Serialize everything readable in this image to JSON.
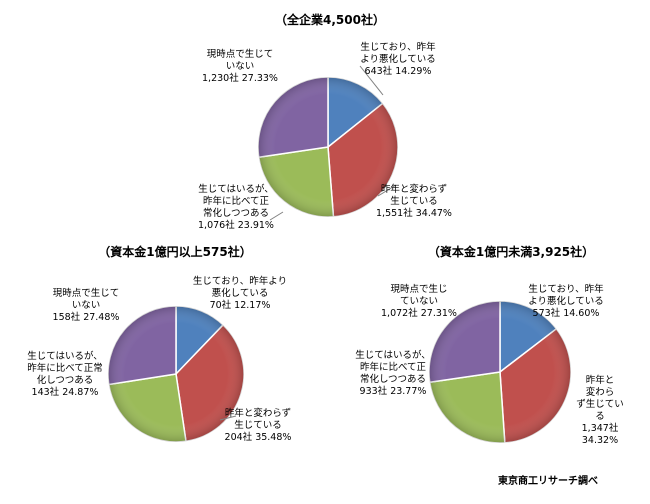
{
  "source": "東京商工リサーチ調べ",
  "chart_data": [
    {
      "type": "pie",
      "title": "（全企業4,500社）",
      "slices": [
        {
          "label_lines": [
            "生じており、昨年",
            "より悪化している",
            "643社 14.29%"
          ],
          "value": 643,
          "percent": 14.29,
          "color": "#4f81bd"
        },
        {
          "label_lines": [
            "昨年と変わらず",
            "生じている",
            "1,551社 34.47%"
          ],
          "value": 1551,
          "percent": 34.47,
          "color": "#c0504d"
        },
        {
          "label_lines": [
            "生じてはいるが、",
            "昨年に比べて正",
            "常化しつつある",
            "1,076社 23.91%"
          ],
          "value": 1076,
          "percent": 23.91,
          "color": "#9bbb59"
        },
        {
          "label_lines": [
            "現時点で生じて",
            "いない",
            "1,230社 27.33%"
          ],
          "value": 1230,
          "percent": 27.33,
          "color": "#8064a2"
        }
      ]
    },
    {
      "type": "pie",
      "title": "（資本金1億円以上575社）",
      "slices": [
        {
          "label_lines": [
            "生じており、昨年より",
            "悪化している",
            "70社 12.17%"
          ],
          "value": 70,
          "percent": 12.17,
          "color": "#4f81bd"
        },
        {
          "label_lines": [
            "昨年と変わらず",
            "生じている",
            "204社 35.48%"
          ],
          "value": 204,
          "percent": 35.48,
          "color": "#c0504d"
        },
        {
          "label_lines": [
            "生じてはいるが、",
            "昨年に比べて正常",
            "化しつつある",
            "143社 24.87%"
          ],
          "value": 143,
          "percent": 24.87,
          "color": "#9bbb59"
        },
        {
          "label_lines": [
            "現時点で生じて",
            "いない",
            "158社 27.48%"
          ],
          "value": 158,
          "percent": 27.48,
          "color": "#8064a2"
        }
      ]
    },
    {
      "type": "pie",
      "title": "（資本金1億円未満3,925社）",
      "slices": [
        {
          "label_lines": [
            "生じており、昨年",
            "より悪化している",
            "573社 14.60%"
          ],
          "value": 573,
          "percent": 14.6,
          "color": "#4f81bd"
        },
        {
          "label_lines": [
            "昨年と",
            "変わら",
            "ず生じてい",
            "る",
            "1,347社",
            "34.32%"
          ],
          "value": 1347,
          "percent": 34.32,
          "color": "#c0504d"
        },
        {
          "label_lines": [
            "生じてはいるが、",
            "昨年に比べて正",
            "常化しつつある",
            "933社 23.77%"
          ],
          "value": 933,
          "percent": 23.77,
          "color": "#9bbb59"
        },
        {
          "label_lines": [
            "現時点で生じ",
            "ていない",
            "1,072社 27.31%"
          ],
          "value": 1072,
          "percent": 27.31,
          "color": "#8064a2"
        }
      ]
    }
  ]
}
